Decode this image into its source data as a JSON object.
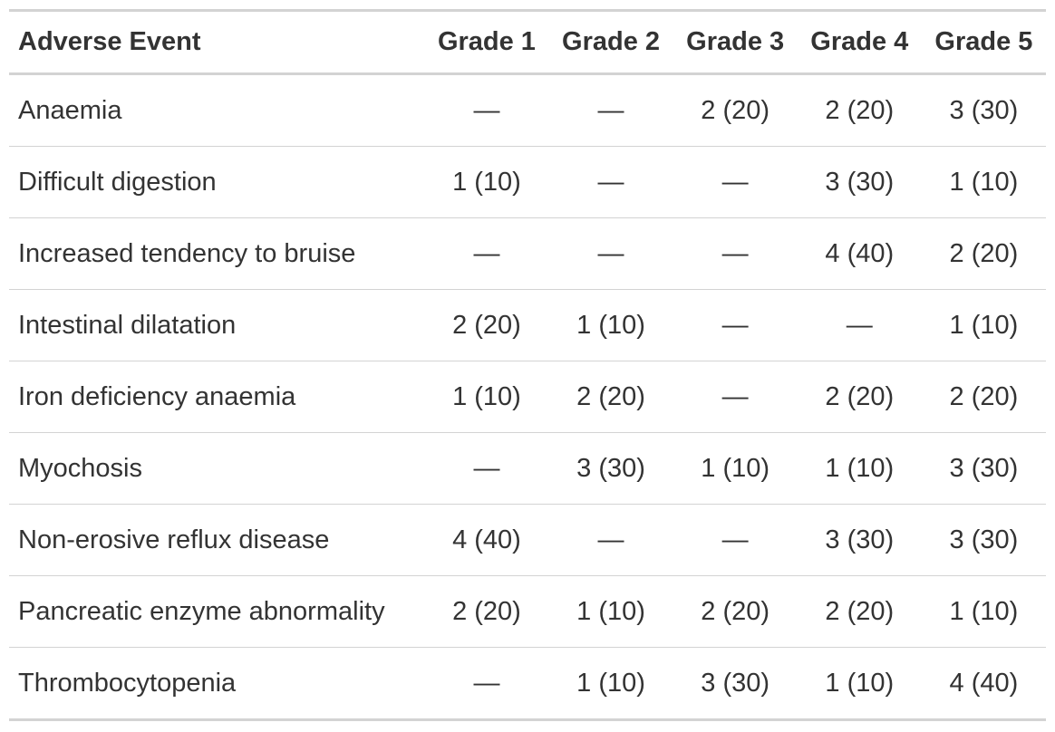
{
  "table": {
    "columns": [
      "Adverse Event",
      "Grade 1",
      "Grade 2",
      "Grade 3",
      "Grade 4",
      "Grade 5"
    ],
    "rows": [
      [
        "Anaemia",
        "—",
        "—",
        "2 (20)",
        "2 (20)",
        "3 (30)"
      ],
      [
        "Difficult digestion",
        "1 (10)",
        "—",
        "—",
        "3 (30)",
        "1 (10)"
      ],
      [
        "Increased tendency to bruise",
        "—",
        "—",
        "—",
        "4 (40)",
        "2 (20)"
      ],
      [
        "Intestinal dilatation",
        "2 (20)",
        "1 (10)",
        "—",
        "—",
        "1 (10)"
      ],
      [
        "Iron deficiency anaemia",
        "1 (10)",
        "2 (20)",
        "—",
        "2 (20)",
        "2 (20)"
      ],
      [
        "Myochosis",
        "—",
        "3 (30)",
        "1 (10)",
        "1 (10)",
        "3 (30)"
      ],
      [
        "Non-erosive reflux disease",
        "4 (40)",
        "—",
        "—",
        "3 (30)",
        "3 (30)"
      ],
      [
        "Pancreatic enzyme abnormality",
        "2 (20)",
        "1 (10)",
        "2 (20)",
        "2 (20)",
        "1 (10)"
      ],
      [
        "Thrombocytopenia",
        "—",
        "1 (10)",
        "3 (30)",
        "1 (10)",
        "4 (40)"
      ]
    ]
  }
}
